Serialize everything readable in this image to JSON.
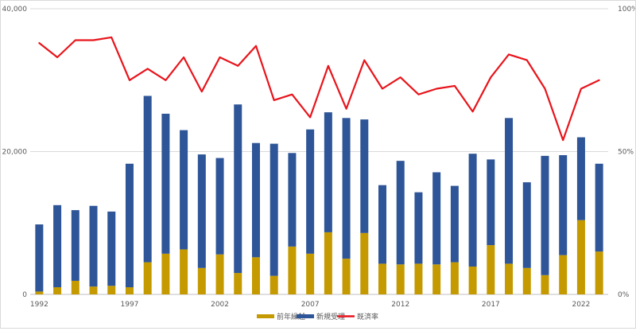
{
  "colors": {
    "prior": "#C49A00",
    "newcases": "#2E5597",
    "rate": "#E8141B",
    "gridline": "#D9D9D9",
    "axisline": "#BFBFBF"
  },
  "chart_data": {
    "type": "bar",
    "stacked": true,
    "title": "",
    "xlabel": "",
    "ylabel": "",
    "x": [
      1992,
      1993,
      1994,
      1995,
      1996,
      1997,
      1998,
      1999,
      2000,
      2001,
      2002,
      2003,
      2004,
      2005,
      2006,
      2007,
      2008,
      2009,
      2010,
      2011,
      2012,
      2013,
      2014,
      2015,
      2016,
      2017,
      2018,
      2019,
      2020,
      2021,
      2022,
      2023
    ],
    "x_tick_labels": [
      "1992",
      "1997",
      "2002",
      "2007",
      "2012",
      "2017",
      "2022"
    ],
    "ylim": [
      0,
      40000
    ],
    "y_tick_labels": [
      "0",
      "20,000",
      "40,000"
    ],
    "y2lim": [
      0,
      100
    ],
    "y2_tick_labels": [
      "0%",
      "50%",
      "100%"
    ],
    "grid": true,
    "legend_position": "bottom",
    "series": [
      {
        "name": "前年繰越",
        "type": "bar",
        "axis": "left",
        "values": [
          400,
          1000,
          1900,
          1100,
          1200,
          1000,
          4500,
          5700,
          6300,
          3700,
          5600,
          3000,
          5200,
          2600,
          6700,
          5700,
          8700,
          5000,
          8600,
          4300,
          4200,
          4300,
          4200,
          4500,
          3900,
          6900,
          4300,
          3700,
          2700,
          5500,
          10400,
          6000
        ]
      },
      {
        "name": "新規受理",
        "type": "bar",
        "axis": "left",
        "values": [
          9400,
          11500,
          9900,
          11300,
          10400,
          17300,
          23300,
          19600,
          16700,
          15900,
          13500,
          23600,
          16000,
          18500,
          13100,
          17400,
          16800,
          19700,
          15900,
          11000,
          14500,
          10000,
          12900,
          10700,
          15800,
          12000,
          20400,
          12000,
          16700,
          14000,
          11600,
          12300
        ]
      },
      {
        "name": "既済率",
        "type": "line",
        "axis": "right",
        "unit": "%",
        "values": [
          88,
          83,
          89,
          89,
          90,
          75,
          79,
          75,
          83,
          71,
          83,
          80,
          87,
          68,
          70,
          62,
          80,
          65,
          82,
          72,
          76,
          70,
          72,
          73,
          64,
          76,
          84,
          82,
          72,
          54,
          72,
          75
        ]
      }
    ]
  }
}
